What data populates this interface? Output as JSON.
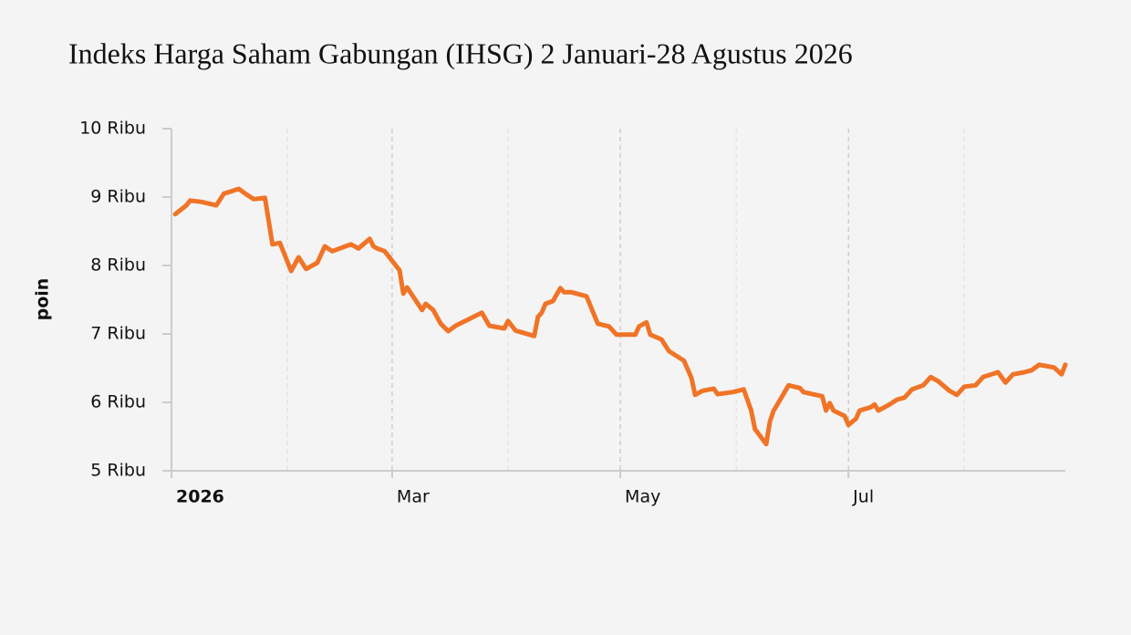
{
  "chart_data": {
    "type": "line",
    "title": "Indeks Harga Saham Gabungan (IHSG) 2 Januari-28 Agustus 2026",
    "y_label": "poin",
    "x": [
      "2026-01-02",
      "2026-01-05",
      "2026-01-06",
      "2026-01-09",
      "2026-01-13",
      "2026-01-15",
      "2026-01-19",
      "2026-01-21",
      "2026-01-23",
      "2026-01-26",
      "2026-01-28",
      "2026-01-30",
      "2026-02-02",
      "2026-02-04",
      "2026-02-06",
      "2026-02-09",
      "2026-02-11",
      "2026-02-13",
      "2026-02-18",
      "2026-02-20",
      "2026-02-23",
      "2026-02-24",
      "2026-02-25",
      "2026-02-27",
      "2026-03-03",
      "2026-03-04",
      "2026-03-05",
      "2026-03-09",
      "2026-03-10",
      "2026-03-12",
      "2026-03-14",
      "2026-03-16",
      "2026-03-18",
      "2026-03-25",
      "2026-03-27",
      "2026-03-31",
      "2026-04-01",
      "2026-04-03",
      "2026-04-08",
      "2026-04-09",
      "2026-04-10",
      "2026-04-11",
      "2026-04-13",
      "2026-04-15",
      "2026-04-16",
      "2026-04-18",
      "2026-04-22",
      "2026-04-25",
      "2026-04-28",
      "2026-04-30",
      "2026-05-05",
      "2026-05-06",
      "2026-05-08",
      "2026-05-09",
      "2026-05-12",
      "2026-05-14",
      "2026-05-18",
      "2026-05-20",
      "2026-05-21",
      "2026-05-23",
      "2026-05-26",
      "2026-05-27",
      "2026-05-31",
      "2026-06-03",
      "2026-06-05",
      "2026-06-06",
      "2026-06-09",
      "2026-06-10",
      "2026-06-11",
      "2026-06-12",
      "2026-06-15",
      "2026-06-18",
      "2026-06-19",
      "2026-06-24",
      "2026-06-25",
      "2026-06-26",
      "2026-06-27",
      "2026-06-30",
      "2026-07-01",
      "2026-07-03",
      "2026-07-04",
      "2026-07-07",
      "2026-07-08",
      "2026-07-09",
      "2026-07-12",
      "2026-07-14",
      "2026-07-16",
      "2026-07-18",
      "2026-07-21",
      "2026-07-23",
      "2026-07-25",
      "2026-07-28",
      "2026-07-30",
      "2026-08-01",
      "2026-08-04",
      "2026-08-06",
      "2026-08-10",
      "2026-08-12",
      "2026-08-14",
      "2026-08-17",
      "2026-08-19",
      "2026-08-21",
      "2026-08-25",
      "2026-08-27",
      "2026-08-28"
    ],
    "series": [
      {
        "name": "IHSG",
        "color": "#f07427",
        "values": [
          8750,
          8880,
          8950,
          8930,
          8880,
          9050,
          9120,
          9040,
          8970,
          8990,
          8310,
          8330,
          7920,
          8120,
          7950,
          8040,
          8280,
          8210,
          8310,
          8250,
          8390,
          8280,
          8250,
          8210,
          7930,
          7590,
          7680,
          7350,
          7440,
          7350,
          7150,
          7040,
          7120,
          7310,
          7120,
          7080,
          7190,
          7050,
          6970,
          7250,
          7310,
          7440,
          7480,
          7670,
          7610,
          7610,
          7550,
          7150,
          7110,
          6990,
          6990,
          7110,
          7170,
          6990,
          6920,
          6750,
          6610,
          6360,
          6110,
          6170,
          6200,
          6120,
          6150,
          6190,
          5880,
          5610,
          5390,
          5720,
          5880,
          5970,
          6250,
          6210,
          6150,
          6090,
          5880,
          5990,
          5880,
          5800,
          5670,
          5760,
          5880,
          5930,
          5970,
          5880,
          5970,
          6040,
          6070,
          6190,
          6250,
          6370,
          6310,
          6170,
          6110,
          6230,
          6250,
          6370,
          6440,
          6290,
          6410,
          6440,
          6470,
          6550,
          6510,
          6410,
          6550
        ]
      }
    ],
    "xlim": [
      "2026-01-01",
      "2026-08-28"
    ],
    "xticks": [
      {
        "value": "2026-01-01",
        "label": "2026"
      },
      {
        "value": "2026-03-01",
        "label": "Mar"
      },
      {
        "value": "2026-05-01",
        "label": "May"
      },
      {
        "value": "2026-07-01",
        "label": "Jul"
      }
    ],
    "minor_xticks": [
      "2026-02-01",
      "2026-04-01",
      "2026-06-01",
      "2026-08-01"
    ],
    "ylim": [
      5000,
      10000
    ],
    "yticks": [
      {
        "value": 5000,
        "label": "5 Ribu"
      },
      {
        "value": 6000,
        "label": "6 Ribu"
      },
      {
        "value": 7000,
        "label": "7 Ribu"
      },
      {
        "value": 8000,
        "label": "8 Ribu"
      },
      {
        "value": 9000,
        "label": "9 Ribu"
      },
      {
        "value": 10000,
        "label": "10 Ribu"
      }
    ],
    "grid": true
  }
}
